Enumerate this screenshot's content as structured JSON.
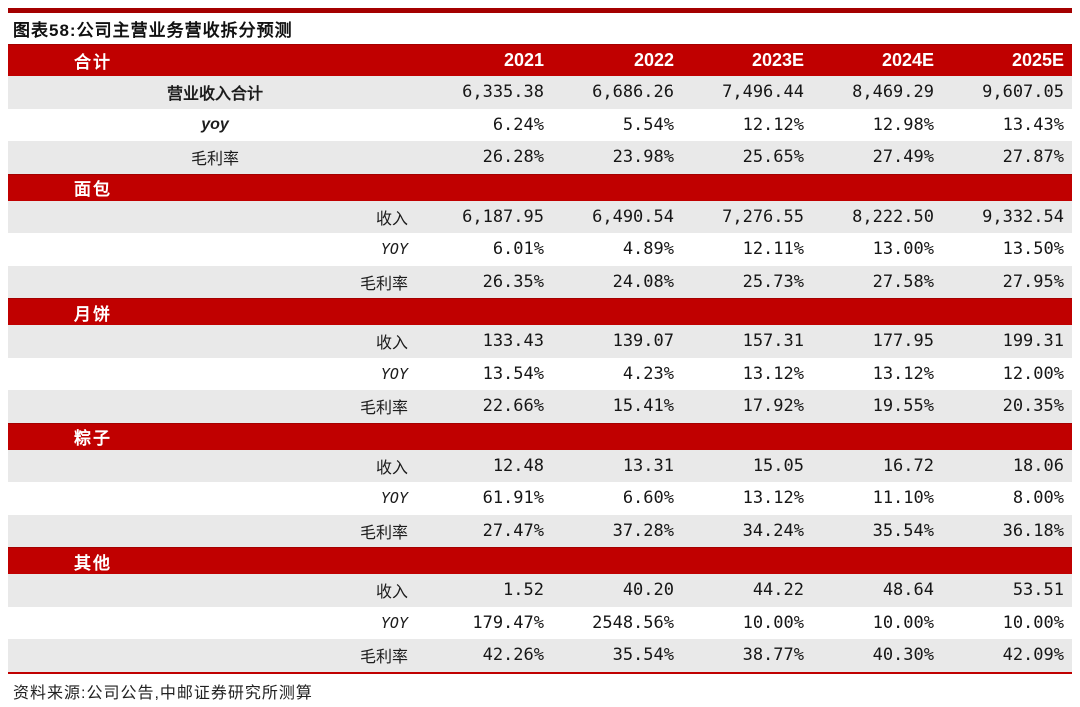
{
  "figure": {
    "title": "图表58:公司主营业务营收拆分预测",
    "source": "资料来源:公司公告,中邮证券研究所测算"
  },
  "colors": {
    "band_red": "#c00000",
    "top_rule_red": "#a40000",
    "row_gray": "#e9e9e9",
    "bottom_rule_red": "#c00000"
  },
  "table": {
    "header": {
      "label": "合计",
      "columns": [
        "2021",
        "2022",
        "2023E",
        "2024E",
        "2025E"
      ]
    },
    "total_rows": [
      {
        "label": "营业收入合计",
        "values": [
          "6,335.38",
          "6,686.26",
          "7,496.44",
          "8,469.29",
          "9,607.05"
        ]
      },
      {
        "label": "yoy",
        "values": [
          "6.24%",
          "5.54%",
          "12.12%",
          "12.98%",
          "13.43%"
        ]
      },
      {
        "label": "毛利率",
        "values": [
          "26.28%",
          "23.98%",
          "25.65%",
          "27.49%",
          "27.87%"
        ]
      }
    ],
    "sections": [
      {
        "name": "面包",
        "rows": [
          {
            "label": "收入",
            "values": [
              "6,187.95",
              "6,490.54",
              "7,276.55",
              "8,222.50",
              "9,332.54"
            ]
          },
          {
            "label": "YOY",
            "values": [
              "6.01%",
              "4.89%",
              "12.11%",
              "13.00%",
              "13.50%"
            ]
          },
          {
            "label": "毛利率",
            "values": [
              "26.35%",
              "24.08%",
              "25.73%",
              "27.58%",
              "27.95%"
            ]
          }
        ]
      },
      {
        "name": "月饼",
        "rows": [
          {
            "label": "收入",
            "values": [
              "133.43",
              "139.07",
              "157.31",
              "177.95",
              "199.31"
            ]
          },
          {
            "label": "YOY",
            "values": [
              "13.54%",
              "4.23%",
              "13.12%",
              "13.12%",
              "12.00%"
            ]
          },
          {
            "label": "毛利率",
            "values": [
              "22.66%",
              "15.41%",
              "17.92%",
              "19.55%",
              "20.35%"
            ]
          }
        ]
      },
      {
        "name": "粽子",
        "rows": [
          {
            "label": "收入",
            "values": [
              "12.48",
              "13.31",
              "15.05",
              "16.72",
              "18.06"
            ]
          },
          {
            "label": "YOY",
            "values": [
              "61.91%",
              "6.60%",
              "13.12%",
              "11.10%",
              "8.00%"
            ]
          },
          {
            "label": "毛利率",
            "values": [
              "27.47%",
              "37.28%",
              "34.24%",
              "35.54%",
              "36.18%"
            ]
          }
        ]
      },
      {
        "name": "其他",
        "rows": [
          {
            "label": "收入",
            "values": [
              "1.52",
              "40.20",
              "44.22",
              "48.64",
              "53.51"
            ]
          },
          {
            "label": "YOY",
            "values": [
              "179.47%",
              "2548.56%",
              "10.00%",
              "10.00%",
              "10.00%"
            ]
          },
          {
            "label": "毛利率",
            "values": [
              "42.26%",
              "35.54%",
              "38.77%",
              "40.30%",
              "42.09%"
            ]
          }
        ]
      }
    ]
  }
}
